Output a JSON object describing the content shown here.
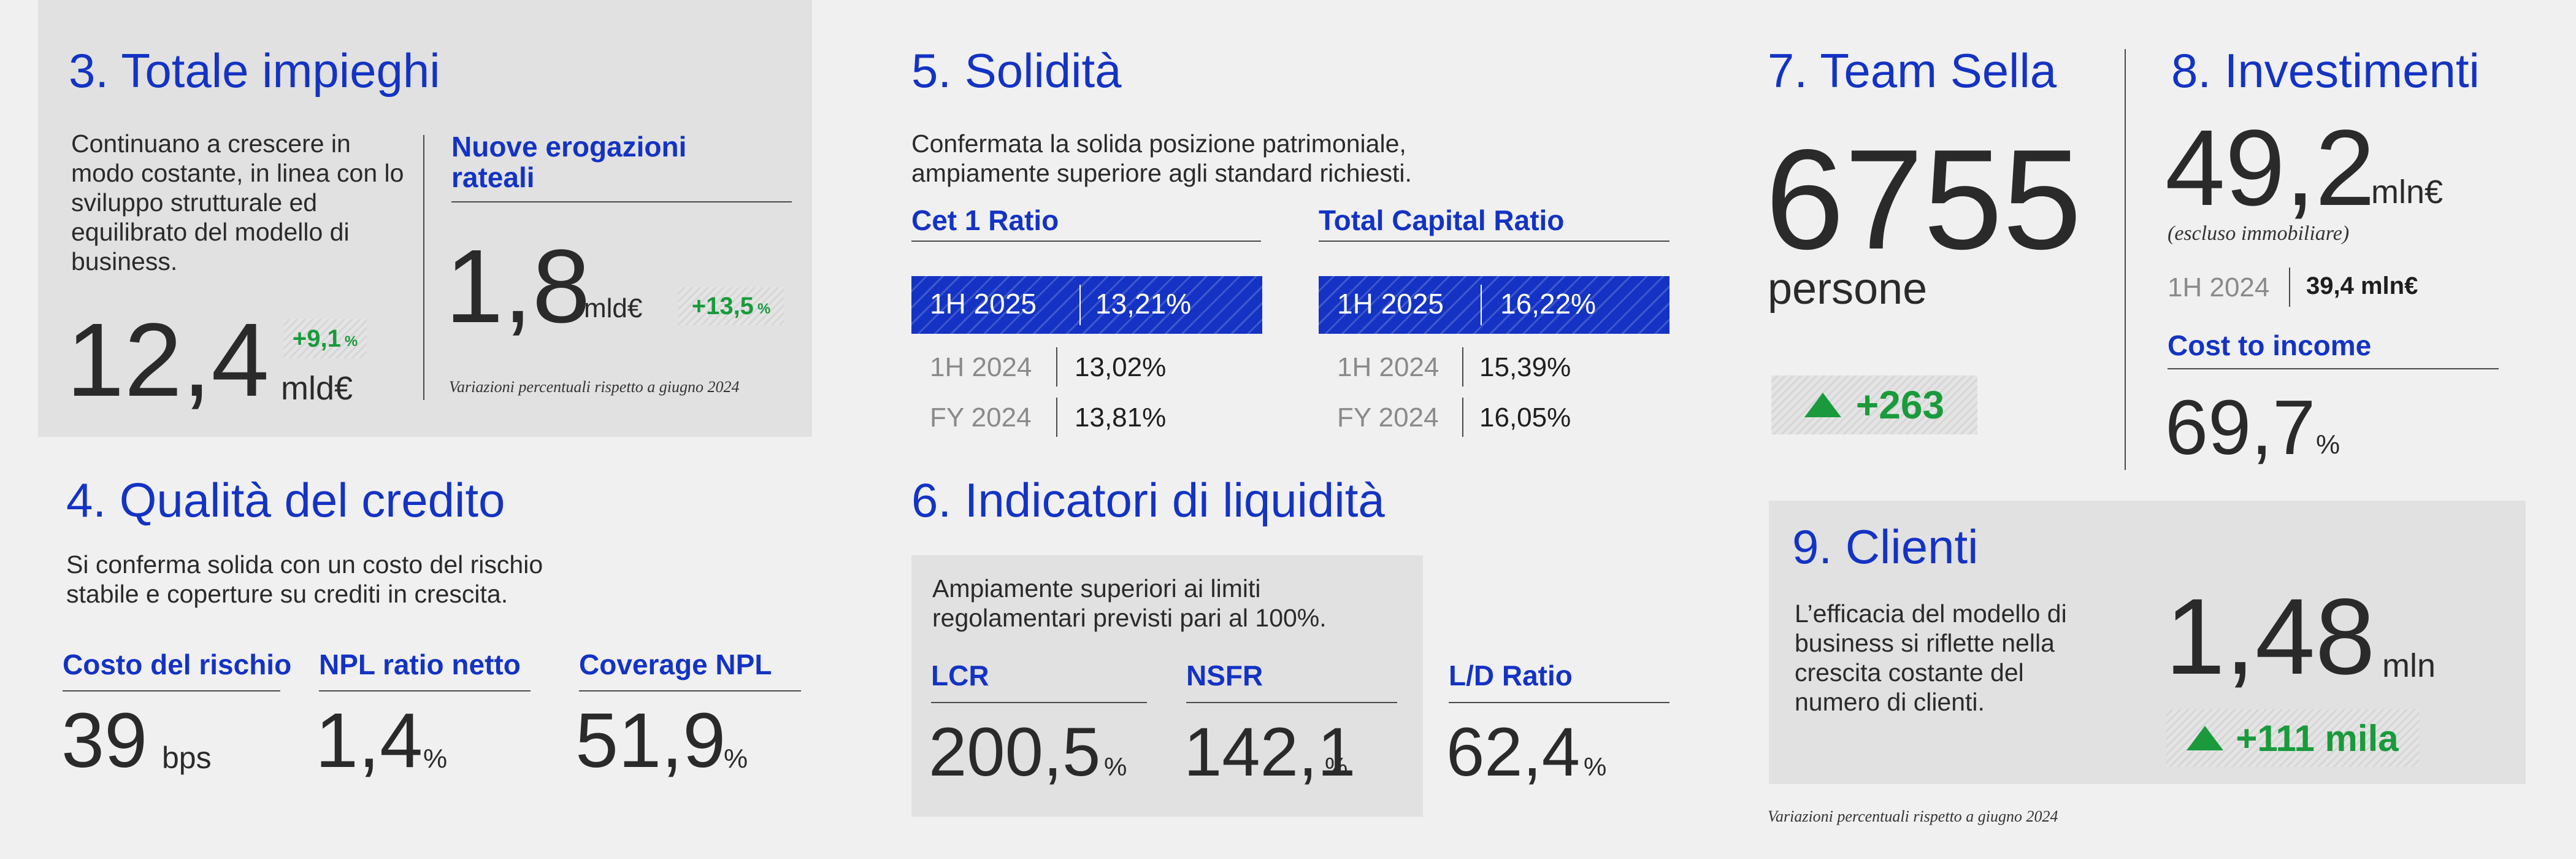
{
  "colors": {
    "accent_blue": "#1433c4",
    "positive_green": "#1a9a3c",
    "panel_grey": "#e1e1e1",
    "background": "#f0f0f0"
  },
  "s3": {
    "title": "3. Totale impieghi",
    "text": "Continuano a crescere in modo costante, in linea con lo sviluppo strutturale ed equilibrato del modello di business.",
    "value": "12,4",
    "unit": "mld€",
    "delta_num": "+9,1",
    "delta_pct": "%",
    "sub_title": "Nuove erogazioni rateali",
    "sub_value": "1,8",
    "sub_unit": "mld€",
    "sub_delta_num": "+13,5",
    "sub_delta_pct": "%",
    "note": "Variazioni percentuali rispetto a giugno 2024"
  },
  "s4": {
    "title": "4. Qualità del credito",
    "text": "Si conferma solida con un costo del rischio stabile e coperture su crediti in crescita.",
    "kpis": [
      {
        "label": "Costo del rischio",
        "value": "39",
        "unit": "bps"
      },
      {
        "label": "NPL ratio netto",
        "value": "1,4",
        "unit": "%"
      },
      {
        "label": "Coverage NPL",
        "value": "51,9",
        "unit": "%"
      }
    ]
  },
  "s5": {
    "title": "5. Solidità",
    "text": "Confermata la solida posizione patrimoniale, ampiamente superiore agli standard richiesti.",
    "cet1": {
      "label": "Cet 1 Ratio",
      "rows": [
        {
          "period": "1H 2025",
          "value": "13,21%"
        },
        {
          "period": "1H 2024",
          "value": "13,02%"
        },
        {
          "period": "FY 2024",
          "value": "13,81%"
        }
      ]
    },
    "tcr": {
      "label": "Total Capital Ratio",
      "rows": [
        {
          "period": "1H 2025",
          "value": "16,22%"
        },
        {
          "period": "1H 2024",
          "value": "15,39%"
        },
        {
          "period": "FY 2024",
          "value": "16,05%"
        }
      ]
    }
  },
  "s6": {
    "title": "6. Indicatori di liquidità",
    "text": "Ampiamente superiori ai limiti regolamentari previsti pari al 100%.",
    "kpis": [
      {
        "label": "LCR",
        "value": "200,5",
        "unit": "%"
      },
      {
        "label": "NSFR",
        "value": "142,1",
        "unit": "%"
      },
      {
        "label": "L/D Ratio",
        "value": "62,4",
        "unit": "%"
      }
    ]
  },
  "s7": {
    "title": "7. Team Sella",
    "value": "6755",
    "unit": "persone",
    "delta": "+263"
  },
  "s8": {
    "title": "8. Investimenti",
    "value": "49,2",
    "unit": "mln€",
    "qualifier": "(escluso immobiliare)",
    "prev_period": "1H 2024",
    "prev_value": "39,4 mln€",
    "cti_label": "Cost to income",
    "cti_value": "69,7",
    "cti_unit": "%"
  },
  "s9": {
    "title": "9. Clienti",
    "text": "L’efficacia del modello di business si riflette nella crescita costante del numero di clienti.",
    "value": "1,48",
    "unit": "mln",
    "delta": "+111 mila"
  },
  "footer_note": "Variazioni percentuali rispetto a giugno 2024"
}
